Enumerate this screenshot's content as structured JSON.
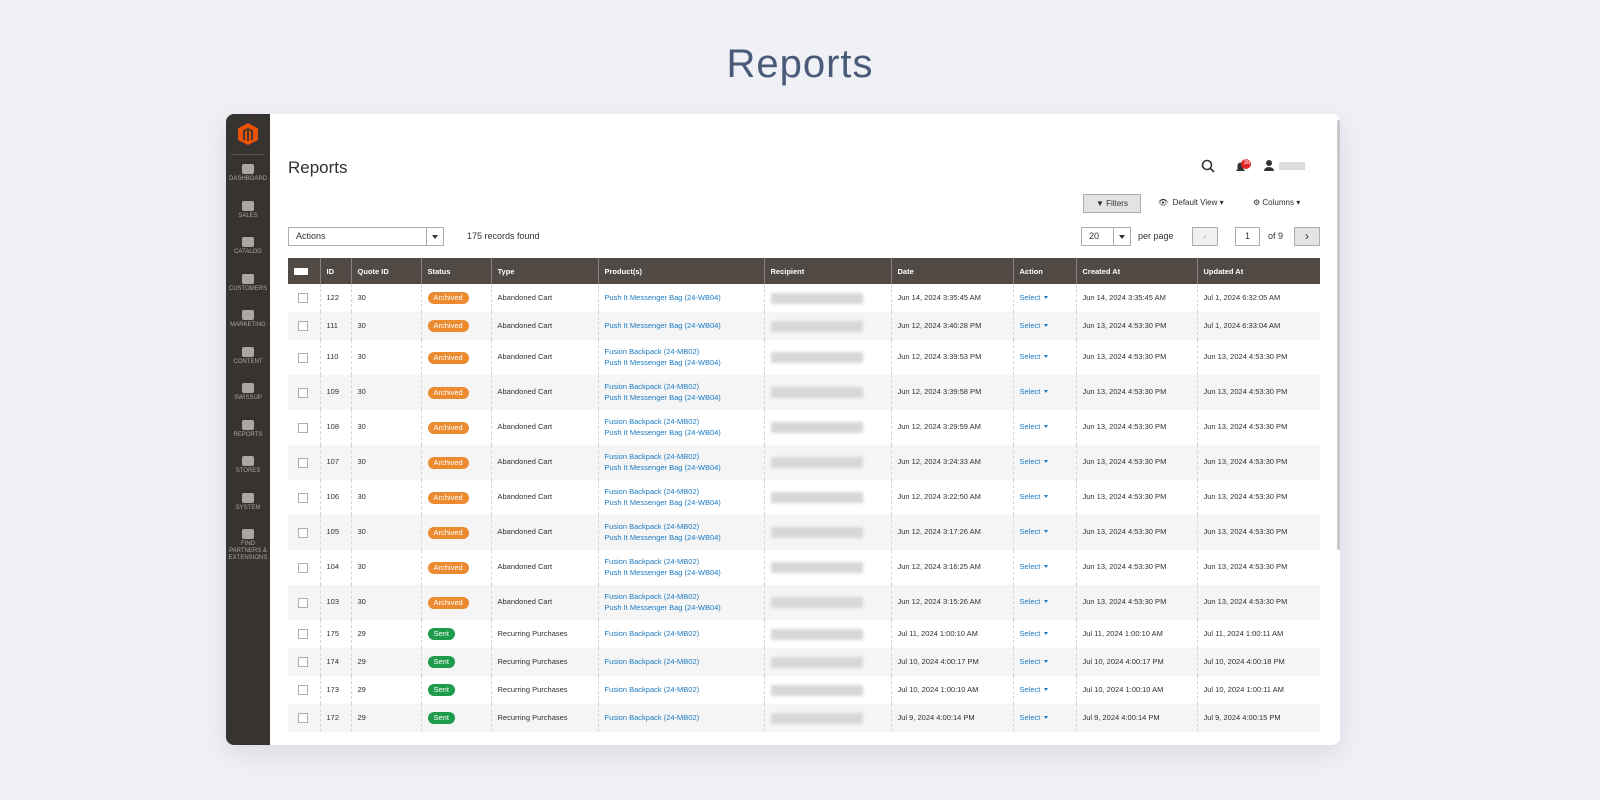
{
  "page_title": "Reports",
  "sidebar": [
    "DASHBOARD",
    "SALES",
    "CATALOG",
    "CUSTOMERS",
    "MARKETING",
    "CONTENT",
    "SWISSUP",
    "REPORTS",
    "STORES",
    "SYSTEM",
    "FIND PARTNERS & EXTENSIONS"
  ],
  "header": {
    "title": "Reports",
    "notifications": "38"
  },
  "toolbar": {
    "filters": "Filters",
    "view": "Default View",
    "columns": "Columns",
    "actions": "Actions",
    "records": "175 records found",
    "per_page_value": "20",
    "per_page": "per page",
    "page": "1",
    "of_pages": "of 9"
  },
  "table": {
    "columns": [
      "ID",
      "Quote ID",
      "Status",
      "Type",
      "Product(s)",
      "Recipient",
      "Date",
      "Action",
      "Created At",
      "Updated At"
    ],
    "rows": [
      {
        "id": 122,
        "quote_id": 30,
        "status": "Archived",
        "type": "Abandoned Cart",
        "products": [
          "Push It Messenger Bag (24-WB04)"
        ],
        "date": "Jun 14, 2024 3:35:45 AM",
        "action": "Select",
        "created_at": "Jun 14, 2024 3:35:45 AM",
        "updated_at": "Jul 1, 2024 6:32:05 AM"
      },
      {
        "id": 111,
        "quote_id": 30,
        "status": "Archived",
        "type": "Abandoned Cart",
        "products": [
          "Push It Messenger Bag (24-WB04)"
        ],
        "date": "Jun 12, 2024 3:40:28 PM",
        "action": "Select",
        "created_at": "Jun 13, 2024 4:53:30 PM",
        "updated_at": "Jul 1, 2024 6:33:04 AM"
      },
      {
        "id": 110,
        "quote_id": 30,
        "status": "Archived",
        "type": "Abandoned Cart",
        "products": [
          "Fusion Backpack (24-MB02)",
          "Push It Messenger Bag (24-WB04)"
        ],
        "date": "Jun 12, 2024 3:39:53 PM",
        "action": "Select",
        "created_at": "Jun 13, 2024 4:53:30 PM",
        "updated_at": "Jun 13, 2024 4:53:30 PM"
      },
      {
        "id": 109,
        "quote_id": 30,
        "status": "Archived",
        "type": "Abandoned Cart",
        "products": [
          "Fusion Backpack (24-MB02)",
          "Push It Messenger Bag (24-WB04)"
        ],
        "date": "Jun 12, 2024 3:39:58 PM",
        "action": "Select",
        "created_at": "Jun 13, 2024 4:53:30 PM",
        "updated_at": "Jun 13, 2024 4:53:30 PM"
      },
      {
        "id": 108,
        "quote_id": 30,
        "status": "Archived",
        "type": "Abandoned Cart",
        "products": [
          "Fusion Backpack (24-MB02)",
          "Push It Messenger Bag (24-WB04)"
        ],
        "date": "Jun 12, 2024 3:29:59 AM",
        "action": "Select",
        "created_at": "Jun 13, 2024 4:53:30 PM",
        "updated_at": "Jun 13, 2024 4:53:30 PM"
      },
      {
        "id": 107,
        "quote_id": 30,
        "status": "Archived",
        "type": "Abandoned Cart",
        "products": [
          "Fusion Backpack (24-MB02)",
          "Push It Messenger Bag (24-WB04)"
        ],
        "date": "Jun 12, 2024 3:24:33 AM",
        "action": "Select",
        "created_at": "Jun 13, 2024 4:53:30 PM",
        "updated_at": "Jun 13, 2024 4:53:30 PM"
      },
      {
        "id": 106,
        "quote_id": 30,
        "status": "Archived",
        "type": "Abandoned Cart",
        "products": [
          "Fusion Backpack (24-MB02)",
          "Push It Messenger Bag (24-WB04)"
        ],
        "date": "Jun 12, 2024 3:22:50 AM",
        "action": "Select",
        "created_at": "Jun 13, 2024 4:53:30 PM",
        "updated_at": "Jun 13, 2024 4:53:30 PM"
      },
      {
        "id": 105,
        "quote_id": 30,
        "status": "Archived",
        "type": "Abandoned Cart",
        "products": [
          "Fusion Backpack (24-MB02)",
          "Push It Messenger Bag (24-WB04)"
        ],
        "date": "Jun 12, 2024 3:17:26 AM",
        "action": "Select",
        "created_at": "Jun 13, 2024 4:53:30 PM",
        "updated_at": "Jun 13, 2024 4:53:30 PM"
      },
      {
        "id": 104,
        "quote_id": 30,
        "status": "Archived",
        "type": "Abandoned Cart",
        "products": [
          "Fusion Backpack (24-MB02)",
          "Push It Messenger Bag (24-WB04)"
        ],
        "date": "Jun 12, 2024 3:16:25 AM",
        "action": "Select",
        "created_at": "Jun 13, 2024 4:53:30 PM",
        "updated_at": "Jun 13, 2024 4:53:30 PM"
      },
      {
        "id": 103,
        "quote_id": 30,
        "status": "Archived",
        "type": "Abandoned Cart",
        "products": [
          "Fusion Backpack (24-MB02)",
          "Push It Messenger Bag (24-WB04)"
        ],
        "date": "Jun 12, 2024 3:15:26 AM",
        "action": "Select",
        "created_at": "Jun 13, 2024 4:53:30 PM",
        "updated_at": "Jun 13, 2024 4:53:30 PM"
      },
      {
        "id": 175,
        "quote_id": 29,
        "status": "Sent",
        "type": "Recurring Purchases",
        "products": [
          "Fusion Backpack (24-MB02)"
        ],
        "date": "Jul 11, 2024 1:00:10 AM",
        "action": "Select",
        "created_at": "Jul 11, 2024 1:00:10 AM",
        "updated_at": "Jul 11, 2024 1:00:11 AM"
      },
      {
        "id": 174,
        "quote_id": 29,
        "status": "Sent",
        "type": "Recurring Purchases",
        "products": [
          "Fusion Backpack (24-MB02)"
        ],
        "date": "Jul 10, 2024 4:00:17 PM",
        "action": "Select",
        "created_at": "Jul 10, 2024 4:00:17 PM",
        "updated_at": "Jul 10, 2024 4:00:18 PM"
      },
      {
        "id": 173,
        "quote_id": 29,
        "status": "Sent",
        "type": "Recurring Purchases",
        "products": [
          "Fusion Backpack (24-MB02)"
        ],
        "date": "Jul 10, 2024 1:00:10 AM",
        "action": "Select",
        "created_at": "Jul 10, 2024 1:00:10 AM",
        "updated_at": "Jul 10, 2024 1:00:11 AM"
      },
      {
        "id": 172,
        "quote_id": 29,
        "status": "Sent",
        "type": "Recurring Purchases",
        "products": [
          "Fusion Backpack (24-MB02)"
        ],
        "date": "Jul 9, 2024 4:00:14 PM",
        "action": "Select",
        "created_at": "Jul 9, 2024 4:00:14 PM",
        "updated_at": "Jul 9, 2024 4:00:15 PM"
      }
    ]
  }
}
